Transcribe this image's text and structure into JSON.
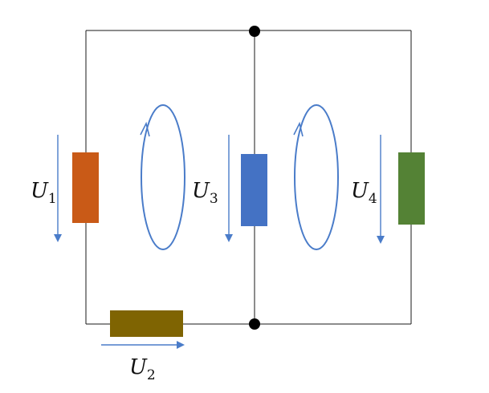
{
  "labels": {
    "u1": {
      "main": "U",
      "sub": "1"
    },
    "u2": {
      "main": "U",
      "sub": "2"
    },
    "u3": {
      "main": "U",
      "sub": "3"
    },
    "u4": {
      "main": "U",
      "sub": "4"
    }
  },
  "colors": {
    "resistor_1": "#c95a17",
    "resistor_2": "#7f6402",
    "resistor_3": "#4472c4",
    "resistor_4": "#548235",
    "arrow": "#4a7cc9",
    "wire": "#1a1a1a"
  },
  "icons": {
    "junction": "junction-dot-icon",
    "mesh_loop": "loop-arrow-icon",
    "voltage_arrow": "arrow-icon"
  }
}
